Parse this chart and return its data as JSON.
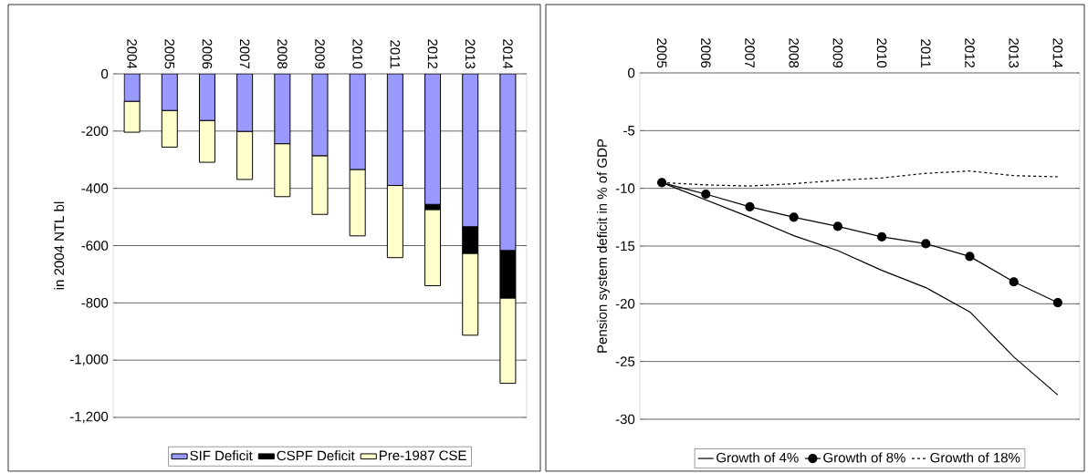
{
  "chart_data": [
    {
      "type": "bar",
      "stacked": true,
      "ylabel": "in 2004 NTL bl",
      "categories": [
        "2004",
        "2005",
        "2006",
        "2007",
        "2008",
        "2009",
        "2010",
        "2011",
        "2012",
        "2013",
        "2014"
      ],
      "series": [
        {
          "name": "SIF Deficit",
          "color": "#9999ff",
          "values": [
            -96,
            -128,
            -163,
            -201,
            -244,
            -286,
            -334,
            -390,
            -456,
            -534,
            -617
          ]
        },
        {
          "name": "CSPF Deficit",
          "color": "#000000",
          "values": [
            0,
            0,
            0,
            0,
            0,
            0,
            0,
            0,
            -18,
            -93,
            -166
          ]
        },
        {
          "name": "Pre-1987 CSE",
          "color": "#ffffcc",
          "values": [
            -108,
            -128,
            -146,
            -168,
            -185,
            -205,
            -232,
            -252,
            -266,
            -286,
            -298
          ]
        }
      ],
      "ylim": [
        -1200,
        0
      ],
      "yticks": [
        {
          "value": -1200,
          "label": "-1,200"
        },
        {
          "value": -1000,
          "label": "-1,000"
        },
        -800,
        -600,
        -400,
        -200,
        0
      ],
      "grid": "y",
      "legend": "bottom"
    },
    {
      "type": "line",
      "ylabel": "Pension system deficit in % of GDP",
      "categories": [
        "2005",
        "2006",
        "2007",
        "2008",
        "2009",
        "2010",
        "2011",
        "2012",
        "2013",
        "2014"
      ],
      "series": [
        {
          "name": "Growth of 4%",
          "color": "#000000",
          "marker": "none",
          "line_style": "solid",
          "values": [
            -9.5,
            -11.0,
            -12.5,
            -14.1,
            -15.4,
            -17.1,
            -18.6,
            -20.7,
            -24.6,
            -27.9
          ]
        },
        {
          "name": "Growth of 8%",
          "color": "#000000",
          "marker": "circle",
          "line_style": "solid",
          "values": [
            -9.5,
            -10.5,
            -11.6,
            -12.5,
            -13.3,
            -14.2,
            -14.8,
            -15.9,
            -18.1,
            -19.9
          ]
        },
        {
          "name": "Growth of 18%",
          "color": "#000000",
          "marker": "none",
          "line_style": "dashed",
          "values": [
            -9.5,
            -9.7,
            -9.8,
            -9.6,
            -9.3,
            -9.1,
            -8.7,
            -8.5,
            -8.9,
            -9.0
          ]
        }
      ],
      "ylim": [
        -30,
        0
      ],
      "yticks": [
        -30,
        -25,
        -20,
        -15,
        -10,
        -5,
        0
      ],
      "grid": "y",
      "legend": "bottom"
    }
  ]
}
